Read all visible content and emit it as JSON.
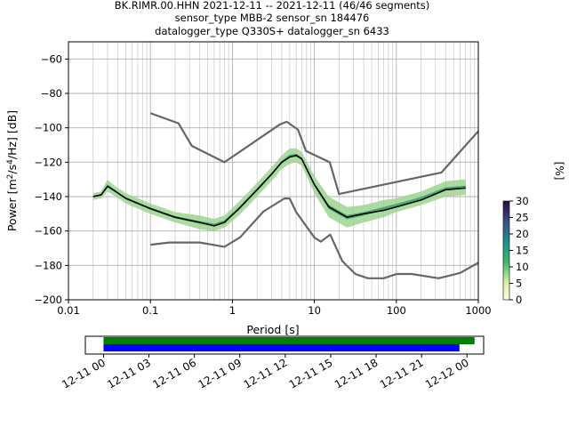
{
  "title": {
    "line1": "BK.RIMR.00.HHN   2021-12-11 -- 2021-12-11  (46/46 segments)",
    "line2": "sensor_type MBB-2 sensor_sn 184476",
    "line3": "datalogger_type Q330S+ datalogger_sn 6433"
  },
  "colors": {
    "model_lines": "#666666",
    "mean": "#000000",
    "coverage_top": "#008000",
    "coverage_bottom": "#0000ff",
    "grid": "#b0b0b0"
  },
  "chart_data": [
    {
      "type": "heatmap",
      "xlabel": "Period [s]",
      "ylabel": "Power [m²/s⁴/Hz] [dB]",
      "ylabel_parts": {
        "a": "Power [m",
        "sup1": "2",
        "b": "/s",
        "sup2": "4",
        "c": "/Hz] [dB]"
      },
      "xscale": "log",
      "xlim": [
        0.01,
        1000
      ],
      "ylim": [
        -200,
        -50
      ],
      "xtick_labels": [
        "0.01",
        "0.1",
        "1",
        "10",
        "100",
        "1000"
      ],
      "xtick_values": [
        0.01,
        0.1,
        1,
        10,
        100,
        1000
      ],
      "ytick_values": [
        -200,
        -180,
        -160,
        -140,
        -120,
        -100,
        -80,
        -60
      ],
      "ytick_labels": [
        "−200",
        "−180",
        "−160",
        "−140",
        "−120",
        "−100",
        "−80",
        "−60"
      ],
      "grid": true,
      "colorbar": {
        "label": "[%]",
        "ticks": [
          "0",
          "5",
          "10",
          "15",
          "20",
          "25",
          "30"
        ],
        "range": [
          0,
          30
        ]
      },
      "series": [
        {
          "name": "",
          "role": "high_noise_model",
          "x": [
            0.1,
            0.22,
            0.32,
            0.8,
            3.8,
            4.6,
            6.3,
            7.9,
            15.4,
            20,
            354.8,
            10000
          ],
          "y": [
            -91.5,
            -97.4,
            -110.5,
            -120,
            -98,
            -96.5,
            -101,
            -113.5,
            -120,
            -138.5,
            -126,
            -48.5
          ]
        },
        {
          "name": "",
          "role": "low_noise_model",
          "x": [
            0.1,
            0.17,
            0.4,
            0.8,
            1.24,
            2.4,
            4.3,
            5,
            6,
            10,
            12,
            15.6,
            21.9,
            31.6,
            45,
            70,
            101,
            154,
            328,
            600,
            10000
          ],
          "y": [
            -168,
            -166.7,
            -166.7,
            -169.2,
            -163.7,
            -148.6,
            -141.1,
            -141.1,
            -149,
            -163.8,
            -166.2,
            -162.1,
            -177.5,
            -185,
            -187.5,
            -187.5,
            -185,
            -185,
            -187.5,
            -184.4,
            -151.5
          ]
        },
        {
          "name": "",
          "role": "mean",
          "x": [
            0.02,
            0.025,
            0.03,
            0.035,
            0.05,
            0.1,
            0.2,
            0.4,
            0.6,
            0.8,
            1.2,
            2,
            3,
            4,
            5,
            6,
            7,
            10,
            15,
            25,
            40,
            70,
            100,
            200,
            400,
            700
          ],
          "y": [
            -140,
            -139,
            -134,
            -136,
            -141,
            -147,
            -152,
            -155,
            -157,
            -155,
            -147,
            -136,
            -127,
            -120,
            -117,
            -116,
            -118,
            -133,
            -146,
            -152,
            -150,
            -148,
            -146,
            -142,
            -136,
            -135
          ]
        }
      ],
      "band": {
        "x": [
          0.02,
          0.025,
          0.03,
          0.035,
          0.05,
          0.1,
          0.2,
          0.4,
          0.6,
          0.8,
          1.2,
          2,
          3,
          4,
          5,
          6,
          7,
          10,
          15,
          25,
          40,
          70,
          100,
          200,
          400,
          700
        ],
        "lo": [
          -142,
          -141,
          -137,
          -139,
          -144,
          -150,
          -155,
          -159,
          -160,
          -158,
          -151,
          -140,
          -131,
          -124,
          -121,
          -120,
          -122,
          -138,
          -152,
          -158,
          -155,
          -152,
          -149,
          -145,
          -140,
          -139
        ],
        "hi": [
          -138,
          -137,
          -130,
          -133,
          -138,
          -144,
          -149,
          -151,
          -153,
          -151,
          -143,
          -132,
          -123,
          -116,
          -112,
          -112,
          -114,
          -128,
          -140,
          -146,
          -145,
          -142,
          -141,
          -137,
          -131,
          -130
        ]
      }
    },
    {
      "type": "bar",
      "role": "data_coverage",
      "xtick_labels": [
        "12-11 00",
        "12-11 03",
        "12-11 06",
        "12-11 09",
        "12-11 12",
        "12-11 15",
        "12-11 18",
        "12-11 21",
        "12-12 00"
      ],
      "xtick_hours": [
        0,
        3,
        6,
        9,
        12,
        15,
        18,
        21,
        24
      ],
      "xlim_hours": [
        -1.2,
        25.1
      ],
      "series": [
        {
          "name": "",
          "color": "#008000",
          "start_hour": 0,
          "end_hour": 24.5
        },
        {
          "name": "",
          "color": "#0000ff",
          "start_hour": 0,
          "end_hour": 23.5
        }
      ]
    }
  ]
}
